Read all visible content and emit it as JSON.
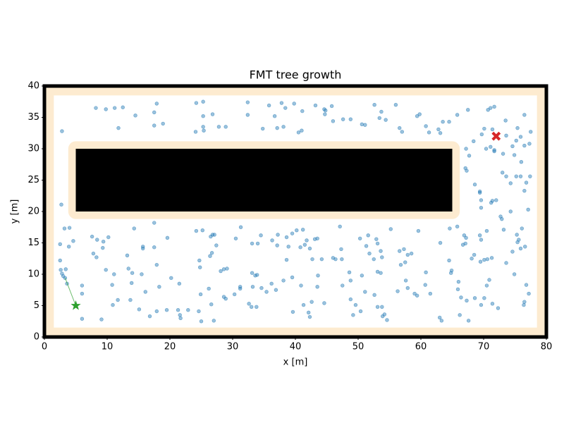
{
  "chart_data": {
    "type": "scatter",
    "title": "FMT tree growth",
    "x_label": "x [m]",
    "y_label": "y [m]",
    "xlim": [
      0,
      80
    ],
    "ylim": [
      0,
      40
    ],
    "xticks": [
      0,
      10,
      20,
      30,
      40,
      50,
      60,
      70,
      80
    ],
    "yticks": [
      0,
      5,
      10,
      15,
      20,
      25,
      30,
      35,
      40
    ],
    "wall_margin": 1.5,
    "obstacle_margin": 1.2,
    "inflation_color": "#fdebd0",
    "obstacles": [
      {
        "x": [
          5,
          65
        ],
        "y": [
          20,
          30
        ]
      }
    ],
    "start": [
      5,
      5
    ],
    "goal": [
      72,
      32
    ],
    "start_color": "#2ca02c",
    "goal_color": "#d62728",
    "edges": [
      [
        [
          5,
          5
        ],
        [
          3.3,
          9.4
        ]
      ]
    ],
    "color": "#1f77b4",
    "points": [
      [
        8.2,
        36.5
      ],
      [
        9.8,
        36.3
      ],
      [
        11.2,
        36.5
      ],
      [
        12.5,
        36.6
      ],
      [
        11.8,
        33.3
      ],
      [
        14.5,
        35.3
      ],
      [
        17.5,
        35.8
      ],
      [
        17.5,
        33.7
      ],
      [
        17.9,
        37.2
      ],
      [
        18.9,
        34
      ],
      [
        2.8,
        32.8
      ],
      [
        24.2,
        37.3
      ],
      [
        25.3,
        37.5
      ],
      [
        25.3,
        35.2
      ],
      [
        24.1,
        32.7
      ],
      [
        25.3,
        33.5
      ],
      [
        25.4,
        32.9
      ],
      [
        26.8,
        35.5
      ],
      [
        27.8,
        33.5
      ],
      [
        28.9,
        33.5
      ],
      [
        32.4,
        37.4
      ],
      [
        32.4,
        35.4
      ],
      [
        34.8,
        33.2
      ],
      [
        35.8,
        36.9
      ],
      [
        36.7,
        35.2
      ],
      [
        37.1,
        33.3
      ],
      [
        37.8,
        37.3
      ],
      [
        38.4,
        36.5
      ],
      [
        38.1,
        33.5
      ],
      [
        39.8,
        37.2
      ],
      [
        40.5,
        32.6
      ],
      [
        41,
        32.9
      ],
      [
        41.1,
        36
      ],
      [
        43.2,
        36.9
      ],
      [
        44.6,
        36.3
      ],
      [
        44.7,
        35.5
      ],
      [
        44.8,
        36.1
      ],
      [
        45.8,
        36.8
      ],
      [
        46,
        34.4
      ],
      [
        47.6,
        34.7
      ],
      [
        48.8,
        34.7
      ],
      [
        50.6,
        33.9
      ],
      [
        51.1,
        33.8
      ],
      [
        52.6,
        37
      ],
      [
        53.4,
        34.9
      ],
      [
        53.7,
        35.9
      ],
      [
        54.4,
        34.6
      ],
      [
        56,
        37
      ],
      [
        56.6,
        33.3
      ],
      [
        57,
        32.7
      ],
      [
        59.4,
        35.2
      ],
      [
        59.8,
        35.5
      ],
      [
        60.8,
        33.6
      ],
      [
        61.3,
        32.6
      ],
      [
        62.8,
        33.1
      ],
      [
        63.5,
        34.3
      ],
      [
        63.1,
        32.5
      ],
      [
        64.5,
        34.3
      ],
      [
        65.8,
        35.4
      ],
      [
        67.5,
        36.2
      ],
      [
        69.7,
        32.3
      ],
      [
        70.7,
        36.2
      ],
      [
        71.1,
        36.5
      ],
      [
        71.7,
        36.7
      ],
      [
        70.1,
        33.2
      ],
      [
        71.4,
        33.1
      ],
      [
        73.5,
        34.5
      ],
      [
        75.4,
        33.3
      ],
      [
        76.5,
        35.4
      ],
      [
        77.5,
        32.7
      ],
      [
        70.4,
        30
      ],
      [
        71.1,
        30.3
      ],
      [
        71.7,
        29.6
      ],
      [
        71.7,
        29.8
      ],
      [
        73.1,
        29.2
      ],
      [
        73.6,
        32.1
      ],
      [
        74.6,
        30.4
      ],
      [
        74.9,
        29
      ],
      [
        75.2,
        31.3
      ],
      [
        75.9,
        31.9
      ],
      [
        76.5,
        30.5
      ],
      [
        77.3,
        30.8
      ],
      [
        73,
        26.2
      ],
      [
        73.6,
        25.6
      ],
      [
        75.2,
        25.6
      ],
      [
        75.9,
        25.6
      ],
      [
        77.4,
        25.6
      ],
      [
        76,
        27.9
      ],
      [
        67.2,
        30
      ],
      [
        67.7,
        28.9
      ],
      [
        68.4,
        31.2
      ],
      [
        67.1,
        26.9
      ],
      [
        67.3,
        26.5
      ],
      [
        69.4,
        23.2
      ],
      [
        69.4,
        23
      ],
      [
        68.6,
        24.3
      ],
      [
        69.6,
        21.8
      ],
      [
        69.6,
        20.6
      ],
      [
        71.2,
        21.4
      ],
      [
        71.4,
        21.7
      ],
      [
        72,
        21.8
      ],
      [
        72.7,
        19.2
      ],
      [
        74.3,
        24.5
      ],
      [
        74.3,
        20
      ],
      [
        76.5,
        23.3
      ],
      [
        76.8,
        24.6
      ],
      [
        77.1,
        20.3
      ],
      [
        2.7,
        21.1
      ],
      [
        3.2,
        17.3
      ],
      [
        4,
        17.4
      ],
      [
        2.5,
        14.8
      ],
      [
        3.9,
        14.4
      ],
      [
        4.6,
        15.3
      ],
      [
        7.6,
        16
      ],
      [
        8.4,
        15.5
      ],
      [
        9.4,
        15.2
      ],
      [
        10.2,
        15.9
      ],
      [
        9.3,
        14.2
      ],
      [
        7.8,
        13.3
      ],
      [
        8.3,
        12.7
      ],
      [
        13.2,
        13
      ],
      [
        14.3,
        17.3
      ],
      [
        15.7,
        14.4
      ],
      [
        15.7,
        14.1
      ],
      [
        17.5,
        14.3
      ],
      [
        17.5,
        18.2
      ],
      [
        19.6,
        15.8
      ],
      [
        17.9,
        11.5
      ],
      [
        13.4,
        10.9
      ],
      [
        14,
        10.2
      ],
      [
        15.5,
        10
      ],
      [
        11.1,
        10
      ],
      [
        9.8,
        10.7
      ],
      [
        2.5,
        12.2
      ],
      [
        2.6,
        10.7
      ],
      [
        3.4,
        10.8
      ],
      [
        2.8,
        10.1
      ],
      [
        3,
        9.7
      ],
      [
        3.3,
        9.4
      ],
      [
        3.6,
        8.5
      ],
      [
        13.9,
        8.6
      ],
      [
        16.1,
        7.2
      ],
      [
        18.3,
        8
      ],
      [
        20.2,
        9.4
      ],
      [
        21.5,
        8.5
      ],
      [
        10.8,
        8.3
      ],
      [
        6,
        8.2
      ],
      [
        6,
        6.9
      ],
      [
        10.9,
        5.1
      ],
      [
        11.7,
        5.9
      ],
      [
        13.7,
        5.9
      ],
      [
        15.1,
        4.4
      ],
      [
        17.9,
        4.1
      ],
      [
        16.8,
        3.3
      ],
      [
        19.5,
        4.3
      ],
      [
        21.3,
        4.3
      ],
      [
        21.6,
        3.5
      ],
      [
        21.7,
        3
      ],
      [
        22.9,
        4.3
      ],
      [
        6,
        2.9
      ],
      [
        9.1,
        2.8
      ],
      [
        24.6,
        4.1
      ],
      [
        25,
        2.5
      ],
      [
        27,
        2.6
      ],
      [
        26.6,
        5.2
      ],
      [
        28.6,
        6.4
      ],
      [
        28.9,
        6.1
      ],
      [
        24.9,
        6.8
      ],
      [
        26.2,
        7.7
      ],
      [
        24.8,
        11.1
      ],
      [
        24.7,
        12.2
      ],
      [
        26.4,
        12.9
      ],
      [
        26.7,
        13.4
      ],
      [
        27.4,
        14.6
      ],
      [
        27.1,
        16.3
      ],
      [
        24.2,
        16.9
      ],
      [
        25.2,
        17
      ],
      [
        26.5,
        16
      ],
      [
        26.8,
        16.3
      ],
      [
        28.6,
        10.8
      ],
      [
        29.1,
        10.9
      ],
      [
        28.1,
        10.5
      ],
      [
        30.5,
        15.7
      ],
      [
        31.3,
        17.5
      ],
      [
        33.1,
        14.9
      ],
      [
        34,
        14.9
      ],
      [
        34.5,
        16.2
      ],
      [
        36.3,
        15.4
      ],
      [
        37.2,
        16.3
      ],
      [
        37.1,
        14.6
      ],
      [
        38.6,
        15.9
      ],
      [
        38.9,
        14.4
      ],
      [
        38.6,
        12.3
      ],
      [
        39.5,
        16.5
      ],
      [
        40.2,
        17
      ],
      [
        41.2,
        17.1
      ],
      [
        40.8,
        14.3
      ],
      [
        41.5,
        14.7
      ],
      [
        41.8,
        15.4
      ],
      [
        42.3,
        14.1
      ],
      [
        43.1,
        15.6
      ],
      [
        43.5,
        15.7
      ],
      [
        42.7,
        12.4
      ],
      [
        31.2,
        7.7
      ],
      [
        31.2,
        8
      ],
      [
        30.3,
        6.8
      ],
      [
        33.1,
        10.2
      ],
      [
        33.6,
        9.8
      ],
      [
        33.9,
        9.9
      ],
      [
        33.2,
        8
      ],
      [
        34.6,
        7.8
      ],
      [
        35.4,
        7.2
      ],
      [
        36.2,
        8.5
      ],
      [
        36.9,
        7.5
      ],
      [
        33,
        4.8
      ],
      [
        32.6,
        5.3
      ],
      [
        33.8,
        4.8
      ],
      [
        38.1,
        9
      ],
      [
        39.5,
        9.5
      ],
      [
        40.9,
        8.2
      ],
      [
        39.6,
        4
      ],
      [
        41.3,
        5.1
      ],
      [
        42.1,
        3.9
      ],
      [
        42.3,
        3.2
      ],
      [
        42.6,
        5.6
      ],
      [
        43.5,
        8
      ],
      [
        43.6,
        9.8
      ],
      [
        44.6,
        5.4
      ],
      [
        44.2,
        12.4
      ],
      [
        46,
        12.6
      ],
      [
        46.4,
        12.4
      ],
      [
        47.1,
        17.6
      ],
      [
        47.3,
        14
      ],
      [
        47.4,
        12.4
      ],
      [
        48.6,
        10.3
      ],
      [
        48.8,
        9
      ],
      [
        47.5,
        8.2
      ],
      [
        48.8,
        6
      ],
      [
        49.2,
        3.5
      ],
      [
        49.6,
        5.1
      ],
      [
        50.4,
        4.1
      ],
      [
        50.6,
        9.8
      ],
      [
        51.1,
        7.2
      ],
      [
        51.3,
        14.5
      ],
      [
        50.3,
        15.7
      ],
      [
        51.6,
        16.2
      ],
      [
        51.8,
        13.3
      ],
      [
        52.5,
        12.4
      ],
      [
        52.9,
        15.6
      ],
      [
        53.1,
        14.9
      ],
      [
        53.6,
        13.7
      ],
      [
        53.8,
        12.7
      ],
      [
        53.1,
        10.4
      ],
      [
        53.6,
        10.2
      ],
      [
        52.6,
        6.7
      ],
      [
        53.1,
        4.8
      ],
      [
        53.8,
        4.8
      ],
      [
        53.9,
        3.3
      ],
      [
        54.2,
        3.6
      ],
      [
        54.6,
        2.7
      ],
      [
        55.2,
        17.2
      ],
      [
        56.3,
        7.3
      ],
      [
        56.6,
        13.7
      ],
      [
        57.3,
        14
      ],
      [
        57.9,
        13.1
      ],
      [
        56.8,
        11.5
      ],
      [
        57.5,
        11.9
      ],
      [
        57.6,
        9
      ],
      [
        57.9,
        7.8
      ],
      [
        58.5,
        13.3
      ],
      [
        59,
        6.9
      ],
      [
        59.6,
        16.9
      ],
      [
        59.4,
        6.6
      ],
      [
        60.8,
        10.3
      ],
      [
        60.7,
        8.3
      ],
      [
        61.5,
        6.9
      ],
      [
        63.1,
        15
      ],
      [
        63,
        3.1
      ],
      [
        63.3,
        2.6
      ],
      [
        64.6,
        17.3
      ],
      [
        64.5,
        12.2
      ],
      [
        64.9,
        10.6
      ],
      [
        64.8,
        10.2
      ],
      [
        65.8,
        17.6
      ],
      [
        66,
        8.8
      ],
      [
        65.9,
        7.6
      ],
      [
        66.4,
        6.3
      ],
      [
        66.7,
        14.7
      ],
      [
        66.9,
        16.2
      ],
      [
        67.2,
        15.8
      ],
      [
        67.1,
        14.9
      ],
      [
        66.2,
        3.5
      ],
      [
        67.6,
        2.6
      ],
      [
        67.3,
        5.8
      ],
      [
        68.1,
        12.5
      ],
      [
        68.5,
        13.1
      ],
      [
        68.6,
        6.2
      ],
      [
        69.4,
        16.2
      ],
      [
        69.6,
        15.5
      ],
      [
        69.5,
        12
      ],
      [
        70.1,
        12.3
      ],
      [
        70.6,
        12.4
      ],
      [
        70.5,
        16.9
      ],
      [
        70.5,
        8.2
      ],
      [
        70.9,
        9.1
      ],
      [
        71.3,
        12.6
      ],
      [
        70.1,
        6.2
      ],
      [
        69.6,
        5.1
      ],
      [
        71.4,
        5.3
      ],
      [
        72.3,
        4.6
      ],
      [
        72.9,
        18.8
      ],
      [
        73.2,
        17.1
      ],
      [
        73.6,
        11.8
      ],
      [
        74.6,
        13.6
      ],
      [
        75.3,
        16.3
      ],
      [
        75.6,
        15.5
      ],
      [
        75.4,
        15.1
      ],
      [
        75.9,
        14.1
      ],
      [
        76.6,
        14.4
      ],
      [
        76.1,
        17.3
      ],
      [
        74.9,
        10
      ],
      [
        76.8,
        8.3
      ],
      [
        77.2,
        6.9
      ],
      [
        76.5,
        5.6
      ],
      [
        76.4,
        5.1
      ]
    ]
  }
}
